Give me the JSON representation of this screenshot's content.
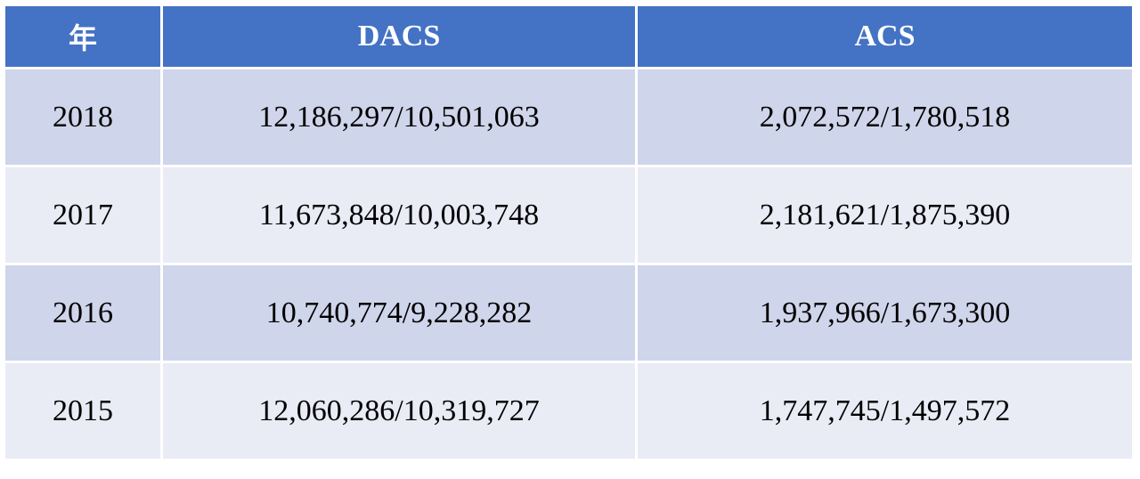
{
  "table": {
    "headers": [
      "年",
      "DACS",
      "ACS"
    ],
    "rows": [
      {
        "year": "2018",
        "dacs": "12,186,297/10,501,063",
        "acs": "2,072,572/1,780,518"
      },
      {
        "year": "2017",
        "dacs": "11,673,848/10,003,748",
        "acs": "2,181,621/1,875,390"
      },
      {
        "year": "2016",
        "dacs": "10,740,774/9,228,282",
        "acs": "1,937,966/1,673,300"
      },
      {
        "year": "2015",
        "dacs": "12,060,286/10,319,727",
        "acs": "1,747,745/1,497,572"
      }
    ],
    "colors": {
      "header_bg": "#4472c4",
      "header_text": "#ffffff",
      "row_band_dark": "#cfd5ea",
      "row_band_light": "#e9ebf5"
    }
  }
}
